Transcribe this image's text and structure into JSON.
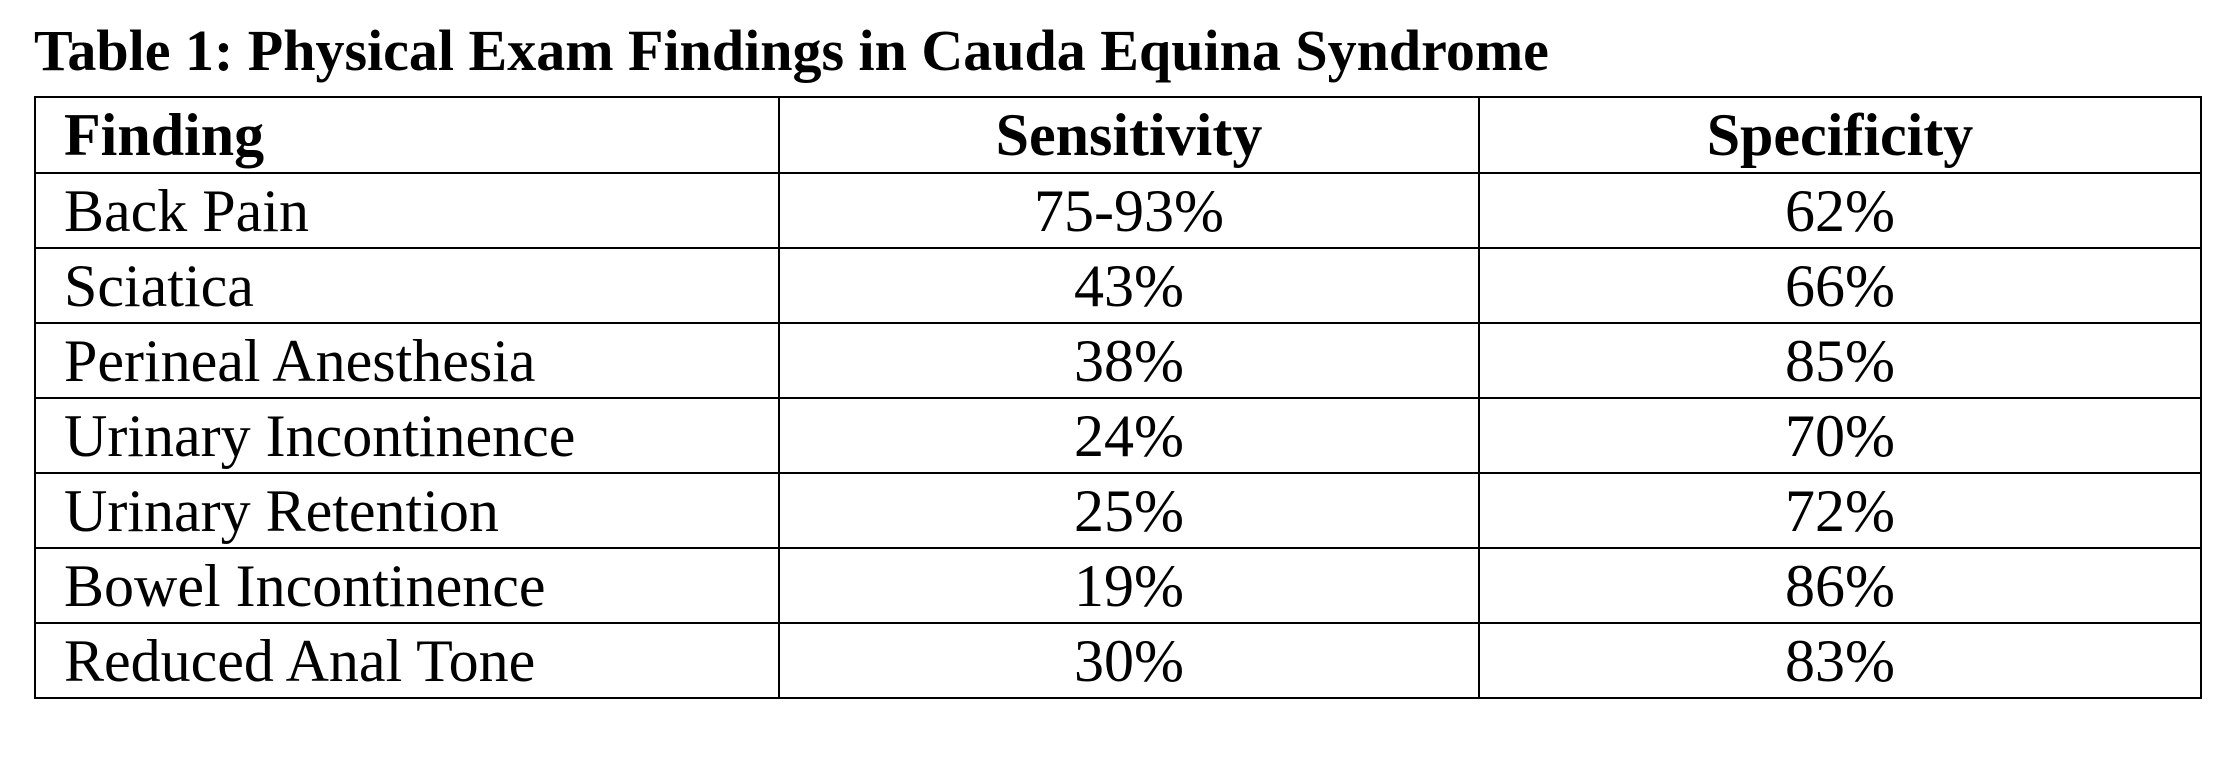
{
  "caption": "Table 1: Physical Exam Findings in Cauda Equina Syndrome",
  "headers": {
    "finding": "Finding",
    "sensitivity": "Sensitivity",
    "specificity": "Specificity"
  },
  "rows": [
    {
      "finding": "Back Pain",
      "sensitivity": "75-93%",
      "specificity": "62%"
    },
    {
      "finding": "Sciatica",
      "sensitivity": "43%",
      "specificity": "66%"
    },
    {
      "finding": "Perineal Anesthesia",
      "sensitivity": "38%",
      "specificity": "85%"
    },
    {
      "finding": "Urinary Incontinence",
      "sensitivity": "24%",
      "specificity": "70%"
    },
    {
      "finding": "Urinary Retention",
      "sensitivity": "25%",
      "specificity": "72%"
    },
    {
      "finding": "Bowel Incontinence",
      "sensitivity": "19%",
      "specificity": "86%"
    },
    {
      "finding": "Reduced Anal Tone",
      "sensitivity": "30%",
      "specificity": "83%"
    }
  ]
}
